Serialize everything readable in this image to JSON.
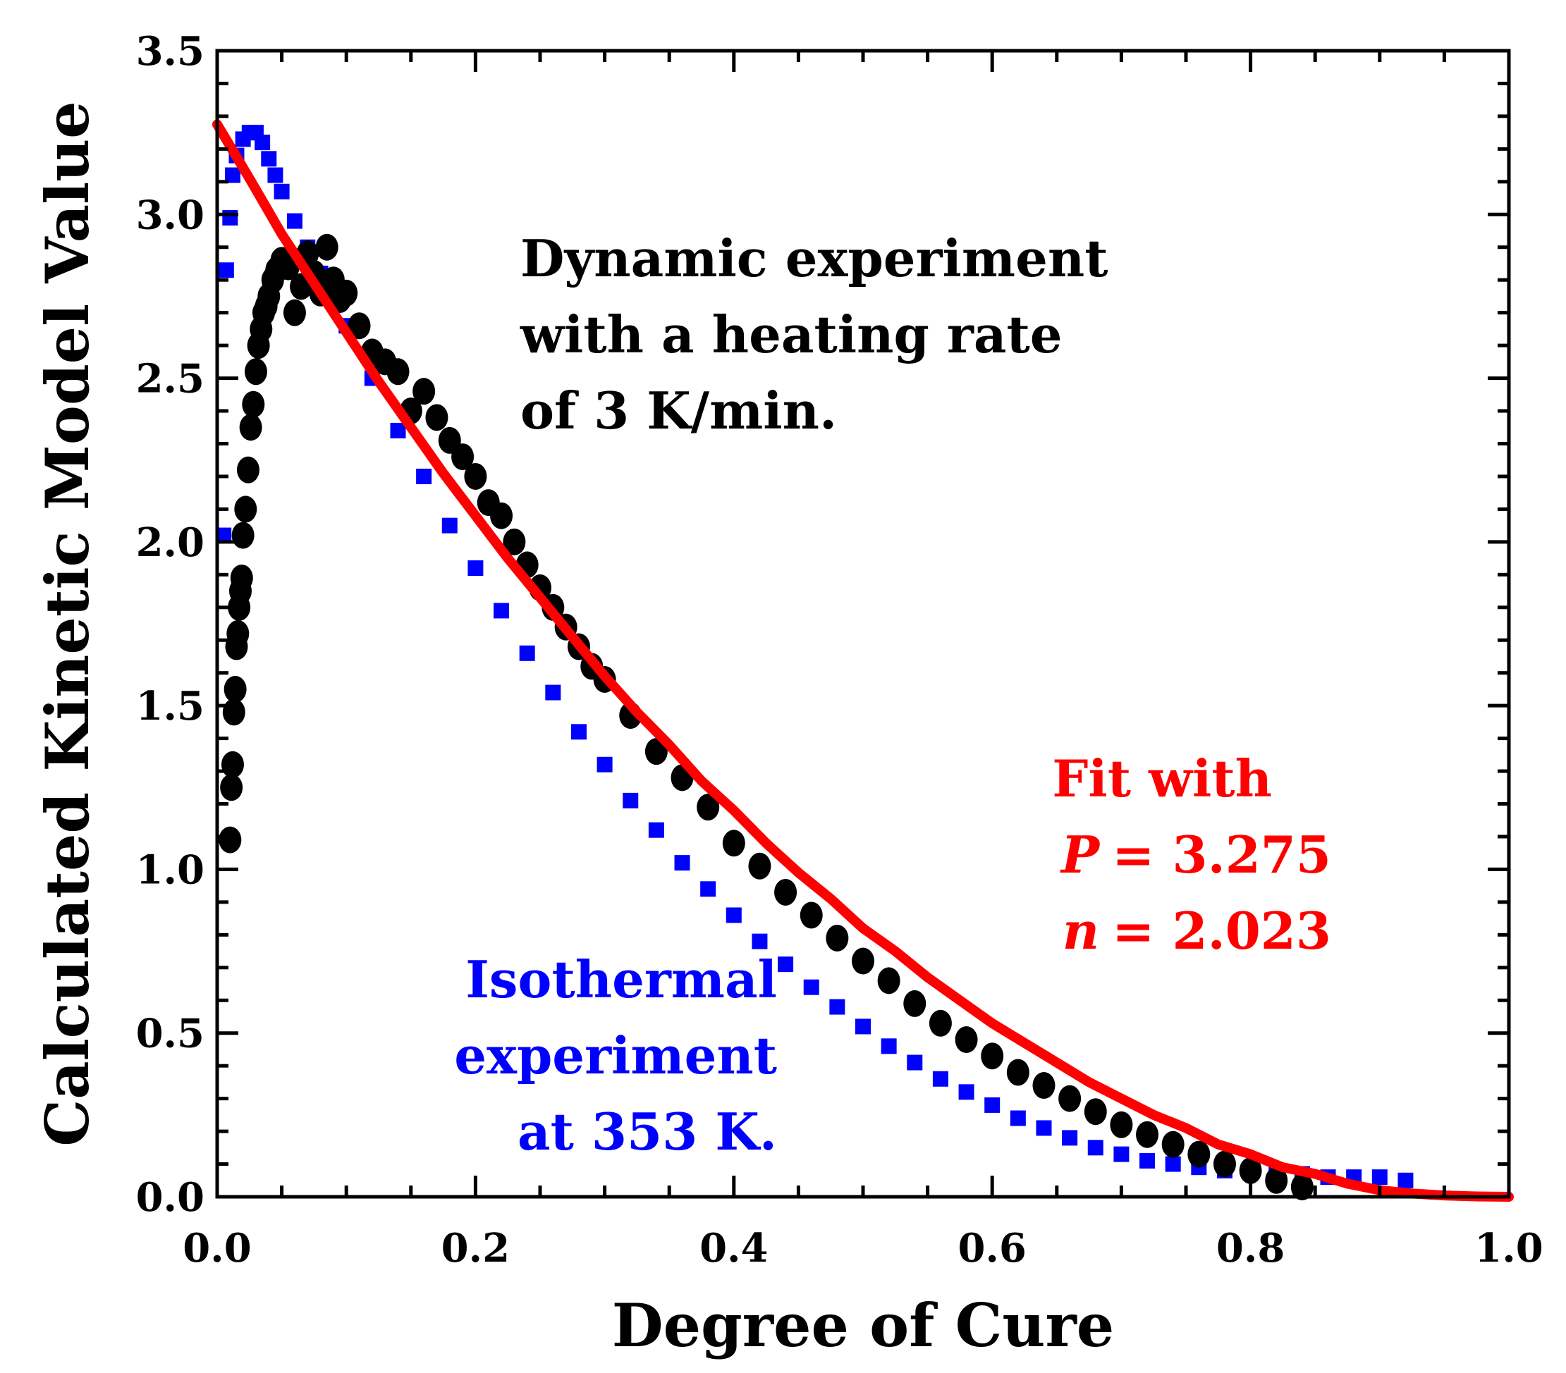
{
  "chart_data": {
    "type": "scatter",
    "title": "",
    "xlabel": "Degree of Cure",
    "ylabel": "Calculated Kinetic Model Value",
    "xlim": [
      0.0,
      1.0
    ],
    "ylim": [
      0.0,
      3.5
    ],
    "xticks": [
      "0.0",
      "0.2",
      "0.4",
      "0.6",
      "0.8",
      "1.0"
    ],
    "yticks": [
      "0.0",
      "0.5",
      "1.0",
      "1.5",
      "2.0",
      "2.5",
      "3.0",
      "3.5"
    ],
    "grid": false,
    "series": [
      {
        "name": "Isothermal experiment at 353 K.",
        "marker": "square",
        "color": "#0000ff",
        "x": [
          0.005,
          0.007,
          0.01,
          0.012,
          0.015,
          0.02,
          0.025,
          0.03,
          0.035,
          0.04,
          0.045,
          0.05,
          0.06,
          0.07,
          0.08,
          0.09,
          0.1,
          0.12,
          0.14,
          0.16,
          0.18,
          0.2,
          0.22,
          0.24,
          0.26,
          0.28,
          0.3,
          0.32,
          0.34,
          0.36,
          0.38,
          0.4,
          0.42,
          0.44,
          0.46,
          0.48,
          0.5,
          0.52,
          0.54,
          0.56,
          0.58,
          0.6,
          0.62,
          0.64,
          0.66,
          0.68,
          0.7,
          0.72,
          0.74,
          0.76,
          0.78,
          0.8,
          0.82,
          0.84,
          0.86,
          0.88,
          0.9,
          0.92
        ],
        "y": [
          2.02,
          2.83,
          2.99,
          3.12,
          3.18,
          3.23,
          3.25,
          3.25,
          3.22,
          3.17,
          3.12,
          3.07,
          2.98,
          2.9,
          2.82,
          2.74,
          2.66,
          2.5,
          2.34,
          2.2,
          2.05,
          1.92,
          1.79,
          1.66,
          1.54,
          1.42,
          1.32,
          1.21,
          1.12,
          1.02,
          0.94,
          0.86,
          0.78,
          0.71,
          0.64,
          0.58,
          0.52,
          0.46,
          0.41,
          0.36,
          0.32,
          0.28,
          0.24,
          0.21,
          0.18,
          0.15,
          0.13,
          0.11,
          0.1,
          0.09,
          0.08,
          0.08,
          0.07,
          0.07,
          0.06,
          0.06,
          0.06,
          0.05
        ]
      },
      {
        "name": "Dynamic experiment with a heating rate of 3 K/min.",
        "marker": "circle",
        "color": "#000000",
        "x": [
          0.01,
          0.011,
          0.012,
          0.013,
          0.014,
          0.015,
          0.016,
          0.017,
          0.018,
          0.019,
          0.02,
          0.022,
          0.024,
          0.026,
          0.028,
          0.03,
          0.032,
          0.034,
          0.036,
          0.038,
          0.04,
          0.043,
          0.046,
          0.05,
          0.055,
          0.06,
          0.065,
          0.07,
          0.075,
          0.08,
          0.085,
          0.09,
          0.095,
          0.1,
          0.11,
          0.12,
          0.13,
          0.14,
          0.15,
          0.16,
          0.17,
          0.18,
          0.19,
          0.2,
          0.21,
          0.22,
          0.23,
          0.24,
          0.25,
          0.26,
          0.27,
          0.28,
          0.29,
          0.3,
          0.32,
          0.34,
          0.36,
          0.38,
          0.4,
          0.42,
          0.44,
          0.46,
          0.48,
          0.5,
          0.52,
          0.54,
          0.56,
          0.58,
          0.6,
          0.62,
          0.64,
          0.66,
          0.68,
          0.7,
          0.72,
          0.74,
          0.76,
          0.78,
          0.8,
          0.82,
          0.84
        ],
        "y": [
          1.09,
          1.25,
          1.32,
          1.48,
          1.55,
          1.68,
          1.72,
          1.8,
          1.85,
          1.89,
          2.02,
          2.1,
          2.22,
          2.35,
          2.42,
          2.52,
          2.6,
          2.65,
          2.7,
          2.72,
          2.75,
          2.8,
          2.83,
          2.86,
          2.84,
          2.7,
          2.78,
          2.88,
          2.82,
          2.76,
          2.9,
          2.8,
          2.74,
          2.76,
          2.66,
          2.58,
          2.55,
          2.52,
          2.4,
          2.46,
          2.38,
          2.31,
          2.26,
          2.2,
          2.12,
          2.08,
          2.0,
          1.93,
          1.86,
          1.8,
          1.74,
          1.68,
          1.62,
          1.58,
          1.47,
          1.36,
          1.28,
          1.19,
          1.08,
          1.01,
          0.93,
          0.86,
          0.79,
          0.72,
          0.66,
          0.59,
          0.53,
          0.48,
          0.43,
          0.38,
          0.34,
          0.3,
          0.26,
          0.22,
          0.19,
          0.16,
          0.13,
          0.1,
          0.08,
          0.05,
          0.03
        ]
      },
      {
        "name": "Fit with P = 3.275 n = 2.023",
        "type": "line",
        "color": "#ff0000",
        "P": 3.275,
        "n": 2.023,
        "x": [
          0.0,
          0.025,
          0.05,
          0.075,
          0.1,
          0.125,
          0.15,
          0.175,
          0.2,
          0.225,
          0.25,
          0.275,
          0.3,
          0.325,
          0.35,
          0.375,
          0.4,
          0.425,
          0.45,
          0.475,
          0.5,
          0.525,
          0.55,
          0.575,
          0.6,
          0.625,
          0.65,
          0.675,
          0.7,
          0.725,
          0.75,
          0.775,
          0.8,
          0.825,
          0.85,
          0.875,
          0.9,
          0.925,
          0.95,
          0.975,
          1.0
        ],
        "y": [
          3.275,
          3.11,
          2.94,
          2.79,
          2.64,
          2.49,
          2.35,
          2.21,
          2.08,
          1.95,
          1.83,
          1.71,
          1.59,
          1.48,
          1.38,
          1.27,
          1.18,
          1.08,
          0.99,
          0.91,
          0.82,
          0.75,
          0.67,
          0.6,
          0.53,
          0.47,
          0.41,
          0.35,
          0.3,
          0.25,
          0.21,
          0.16,
          0.13,
          0.09,
          0.07,
          0.04,
          0.02,
          0.01,
          0.004,
          0.001,
          0.0
        ]
      }
    ],
    "annotations": {
      "dynamic": [
        "Dynamic experiment",
        "with a heating rate",
        "of 3 K/min."
      ],
      "isothermal": [
        "Isothermal",
        "experiment",
        "at 353 K."
      ],
      "fit_title": "Fit with",
      "fit_p_symbol": "P",
      "fit_p_value": "= 3.275",
      "fit_n_symbol": "n",
      "fit_n_value": "= 2.023"
    }
  }
}
